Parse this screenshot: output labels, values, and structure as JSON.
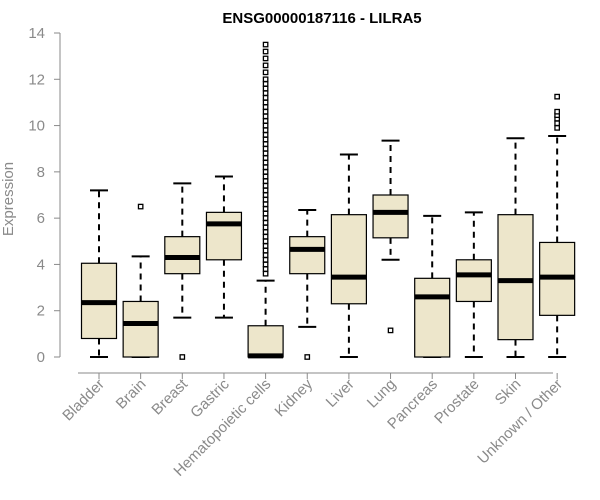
{
  "chart_data": {
    "type": "boxplot",
    "title": "ENSG00000187116 - LILRA5",
    "xlabel": "",
    "ylabel": "Expression",
    "ylim": [
      0,
      14
    ],
    "yticks": [
      0,
      2,
      4,
      6,
      8,
      10,
      12,
      14
    ],
    "grid": false,
    "box_color": "#ede6cb",
    "categories": [
      "Bladder",
      "Brain",
      "Breast",
      "Gastric",
      "Hematopoietic cells",
      "Kidney",
      "Liver",
      "Lung",
      "Pancreas",
      "Prostate",
      "Skin",
      "Unknown / Other"
    ],
    "boxes": [
      {
        "name": "Bladder",
        "whisker_low": 0.0,
        "q1": 0.8,
        "median": 2.35,
        "q3": 4.05,
        "whisker_high": 7.2,
        "outliers": []
      },
      {
        "name": "Brain",
        "whisker_low": 0.0,
        "q1": 0.0,
        "median": 1.45,
        "q3": 2.4,
        "whisker_high": 4.35,
        "outliers": [
          6.5
        ]
      },
      {
        "name": "Breast",
        "whisker_low": 1.7,
        "q1": 3.6,
        "median": 4.3,
        "q3": 5.2,
        "whisker_high": 7.5,
        "outliers": [
          0.0
        ]
      },
      {
        "name": "Gastric",
        "whisker_low": 1.7,
        "q1": 4.2,
        "median": 5.75,
        "q3": 6.25,
        "whisker_high": 7.8,
        "outliers": []
      },
      {
        "name": "Hematopoietic cells",
        "whisker_low": 0.0,
        "q1": 0.0,
        "median": 0.05,
        "q3": 1.35,
        "whisker_high": 3.3,
        "outliers": [
          3.6,
          3.8,
          4.0,
          4.2,
          4.4,
          4.6,
          4.8,
          5.0,
          5.2,
          5.4,
          5.6,
          5.8,
          6.0,
          6.2,
          6.4,
          6.6,
          6.8,
          7.0,
          7.2,
          7.4,
          7.6,
          7.8,
          8.0,
          8.2,
          8.4,
          8.6,
          8.8,
          9.0,
          9.2,
          9.4,
          9.6,
          9.8,
          10.0,
          10.2,
          10.4,
          10.6,
          10.8,
          11.0,
          11.2,
          11.4,
          11.6,
          11.8,
          12.0,
          12.3,
          12.6,
          12.9,
          13.2,
          13.5
        ]
      },
      {
        "name": "Kidney",
        "whisker_low": 1.3,
        "q1": 3.6,
        "median": 4.65,
        "q3": 5.2,
        "whisker_high": 6.35,
        "outliers": [
          0.0
        ]
      },
      {
        "name": "Liver",
        "whisker_low": 0.0,
        "q1": 2.3,
        "median": 3.45,
        "q3": 6.15,
        "whisker_high": 8.75,
        "outliers": []
      },
      {
        "name": "Lung",
        "whisker_low": 4.2,
        "q1": 5.15,
        "median": 6.25,
        "q3": 7.0,
        "whisker_high": 9.35,
        "outliers": [
          1.15
        ]
      },
      {
        "name": "Pancreas",
        "whisker_low": 0.0,
        "q1": 0.0,
        "median": 2.6,
        "q3": 3.4,
        "whisker_high": 6.1,
        "outliers": []
      },
      {
        "name": "Prostate",
        "whisker_low": 0.0,
        "q1": 2.4,
        "median": 3.55,
        "q3": 4.2,
        "whisker_high": 6.25,
        "outliers": []
      },
      {
        "name": "Skin",
        "whisker_low": 0.0,
        "q1": 0.75,
        "median": 3.3,
        "q3": 6.15,
        "whisker_high": 9.45,
        "outliers": []
      },
      {
        "name": "Unknown / Other",
        "whisker_low": 0.0,
        "q1": 1.8,
        "median": 3.45,
        "q3": 4.95,
        "whisker_high": 9.55,
        "outliers": [
          9.9,
          10.1,
          10.3,
          10.45,
          10.6,
          11.25
        ]
      }
    ]
  }
}
